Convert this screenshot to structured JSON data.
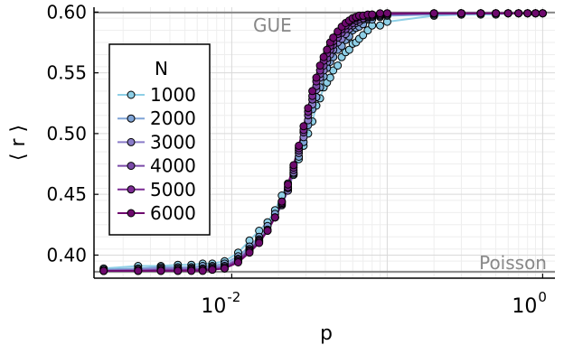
{
  "chart_data": {
    "type": "line",
    "xlabel": "p",
    "ylabel": "⟨ r ⟩",
    "x_scale": "log",
    "xlim": [
      0.0013,
      1.2
    ],
    "ylim": [
      0.381,
      0.604
    ],
    "x_ticks": [
      {
        "value": 0.01,
        "base": "10",
        "exp": "-2"
      },
      {
        "value": 1,
        "base": "10",
        "exp": "0"
      }
    ],
    "y_ticks": [
      {
        "value": 0.4,
        "label": "0.40"
      },
      {
        "value": 0.45,
        "label": "0.45"
      },
      {
        "value": 0.5,
        "label": "0.50"
      },
      {
        "value": 0.55,
        "label": "0.55"
      },
      {
        "value": 0.6,
        "label": "0.60"
      }
    ],
    "grid": true,
    "legend": {
      "title": "N",
      "placement": "left"
    },
    "reference_lines": [
      {
        "label": "GUE",
        "y": 0.5996,
        "color": "#888888"
      },
      {
        "label": "Poisson",
        "y": 0.3863,
        "color": "#888888"
      }
    ],
    "x": [
      0.0015,
      0.0025,
      0.0035,
      0.0045,
      0.0055,
      0.0065,
      0.0075,
      0.009,
      0.011,
      0.013,
      0.015,
      0.017,
      0.019,
      0.021,
      0.023,
      0.025,
      0.027,
      0.029,
      0.031,
      0.033,
      0.035,
      0.037,
      0.039,
      0.041,
      0.043,
      0.045,
      0.048,
      0.051,
      0.054,
      0.057,
      0.06,
      0.063,
      0.066,
      0.07,
      0.075,
      0.08,
      0.09,
      0.1,
      0.2,
      0.3,
      0.4,
      0.5,
      0.6,
      0.7,
      0.8,
      0.9,
      1.0
    ],
    "series": [
      {
        "name": "1000",
        "color": "#8ecfe6",
        "values": [
          0.389,
          0.391,
          0.391,
          0.392,
          0.392,
          0.393,
          0.393,
          0.395,
          0.402,
          0.412,
          0.42,
          0.427,
          0.437,
          0.449,
          0.459,
          0.466,
          0.479,
          0.49,
          0.5,
          0.51,
          0.523,
          0.529,
          0.538,
          0.542,
          0.546,
          0.552,
          0.556,
          0.563,
          0.567,
          0.569,
          0.574,
          0.575,
          0.578,
          0.581,
          0.585,
          0.589,
          0.589,
          0.592,
          0.597,
          0.598,
          0.598,
          0.598,
          0.599,
          0.599,
          0.599,
          0.599,
          0.599
        ]
      },
      {
        "name": "2000",
        "color": "#7fa4d6",
        "values": [
          0.388,
          0.389,
          0.39,
          0.39,
          0.39,
          0.391,
          0.391,
          0.393,
          0.399,
          0.407,
          0.415,
          0.424,
          0.434,
          0.444,
          0.454,
          0.467,
          0.481,
          0.493,
          0.507,
          0.52,
          0.53,
          0.538,
          0.547,
          0.554,
          0.559,
          0.563,
          0.569,
          0.572,
          0.577,
          0.58,
          0.585,
          0.587,
          0.588,
          0.59,
          0.594,
          0.594,
          0.596,
          0.597,
          0.598,
          0.598,
          0.599,
          0.599,
          0.599,
          0.599,
          0.599,
          0.599,
          0.599
        ]
      },
      {
        "name": "3000",
        "color": "#8a7cc9",
        "values": [
          0.387,
          0.388,
          0.389,
          0.389,
          0.389,
          0.389,
          0.39,
          0.391,
          0.397,
          0.405,
          0.413,
          0.421,
          0.431,
          0.441,
          0.453,
          0.468,
          0.484,
          0.497,
          0.511,
          0.524,
          0.536,
          0.546,
          0.552,
          0.559,
          0.565,
          0.569,
          0.575,
          0.578,
          0.582,
          0.586,
          0.589,
          0.591,
          0.592,
          0.594,
          0.595,
          0.596,
          0.597,
          0.598,
          0.599,
          0.599,
          0.599,
          0.599,
          0.599,
          0.599,
          0.599,
          0.599,
          0.599
        ]
      },
      {
        "name": "4000",
        "color": "#7a4aa8",
        "values": [
          0.387,
          0.387,
          0.388,
          0.388,
          0.388,
          0.388,
          0.389,
          0.39,
          0.396,
          0.404,
          0.412,
          0.42,
          0.431,
          0.442,
          0.455,
          0.47,
          0.486,
          0.501,
          0.515,
          0.528,
          0.539,
          0.549,
          0.556,
          0.562,
          0.569,
          0.573,
          0.579,
          0.583,
          0.586,
          0.589,
          0.591,
          0.593,
          0.594,
          0.595,
          0.596,
          0.597,
          0.598,
          0.598,
          0.599,
          0.599,
          0.599,
          0.599,
          0.599,
          0.599,
          0.599,
          0.599,
          0.599
        ]
      },
      {
        "name": "5000",
        "color": "#7c2a94",
        "values": [
          0.387,
          0.387,
          0.387,
          0.387,
          0.388,
          0.388,
          0.388,
          0.389,
          0.395,
          0.403,
          0.411,
          0.42,
          0.431,
          0.443,
          0.456,
          0.472,
          0.488,
          0.503,
          0.518,
          0.531,
          0.543,
          0.552,
          0.56,
          0.566,
          0.572,
          0.576,
          0.582,
          0.586,
          0.589,
          0.592,
          0.594,
          0.595,
          0.596,
          0.597,
          0.597,
          0.598,
          0.598,
          0.599,
          0.599,
          0.599,
          0.599,
          0.599,
          0.599,
          0.599,
          0.599,
          0.599,
          0.599
        ]
      },
      {
        "name": "6000",
        "color": "#6e0a6e",
        "values": [
          0.387,
          0.387,
          0.387,
          0.387,
          0.387,
          0.387,
          0.388,
          0.389,
          0.394,
          0.402,
          0.41,
          0.42,
          0.431,
          0.444,
          0.458,
          0.474,
          0.49,
          0.506,
          0.521,
          0.535,
          0.546,
          0.556,
          0.563,
          0.569,
          0.575,
          0.579,
          0.584,
          0.588,
          0.591,
          0.593,
          0.595,
          0.596,
          0.597,
          0.597,
          0.598,
          0.598,
          0.599,
          0.599,
          0.599,
          0.599,
          0.599,
          0.599,
          0.599,
          0.599,
          0.599,
          0.599,
          0.599
        ]
      }
    ]
  }
}
